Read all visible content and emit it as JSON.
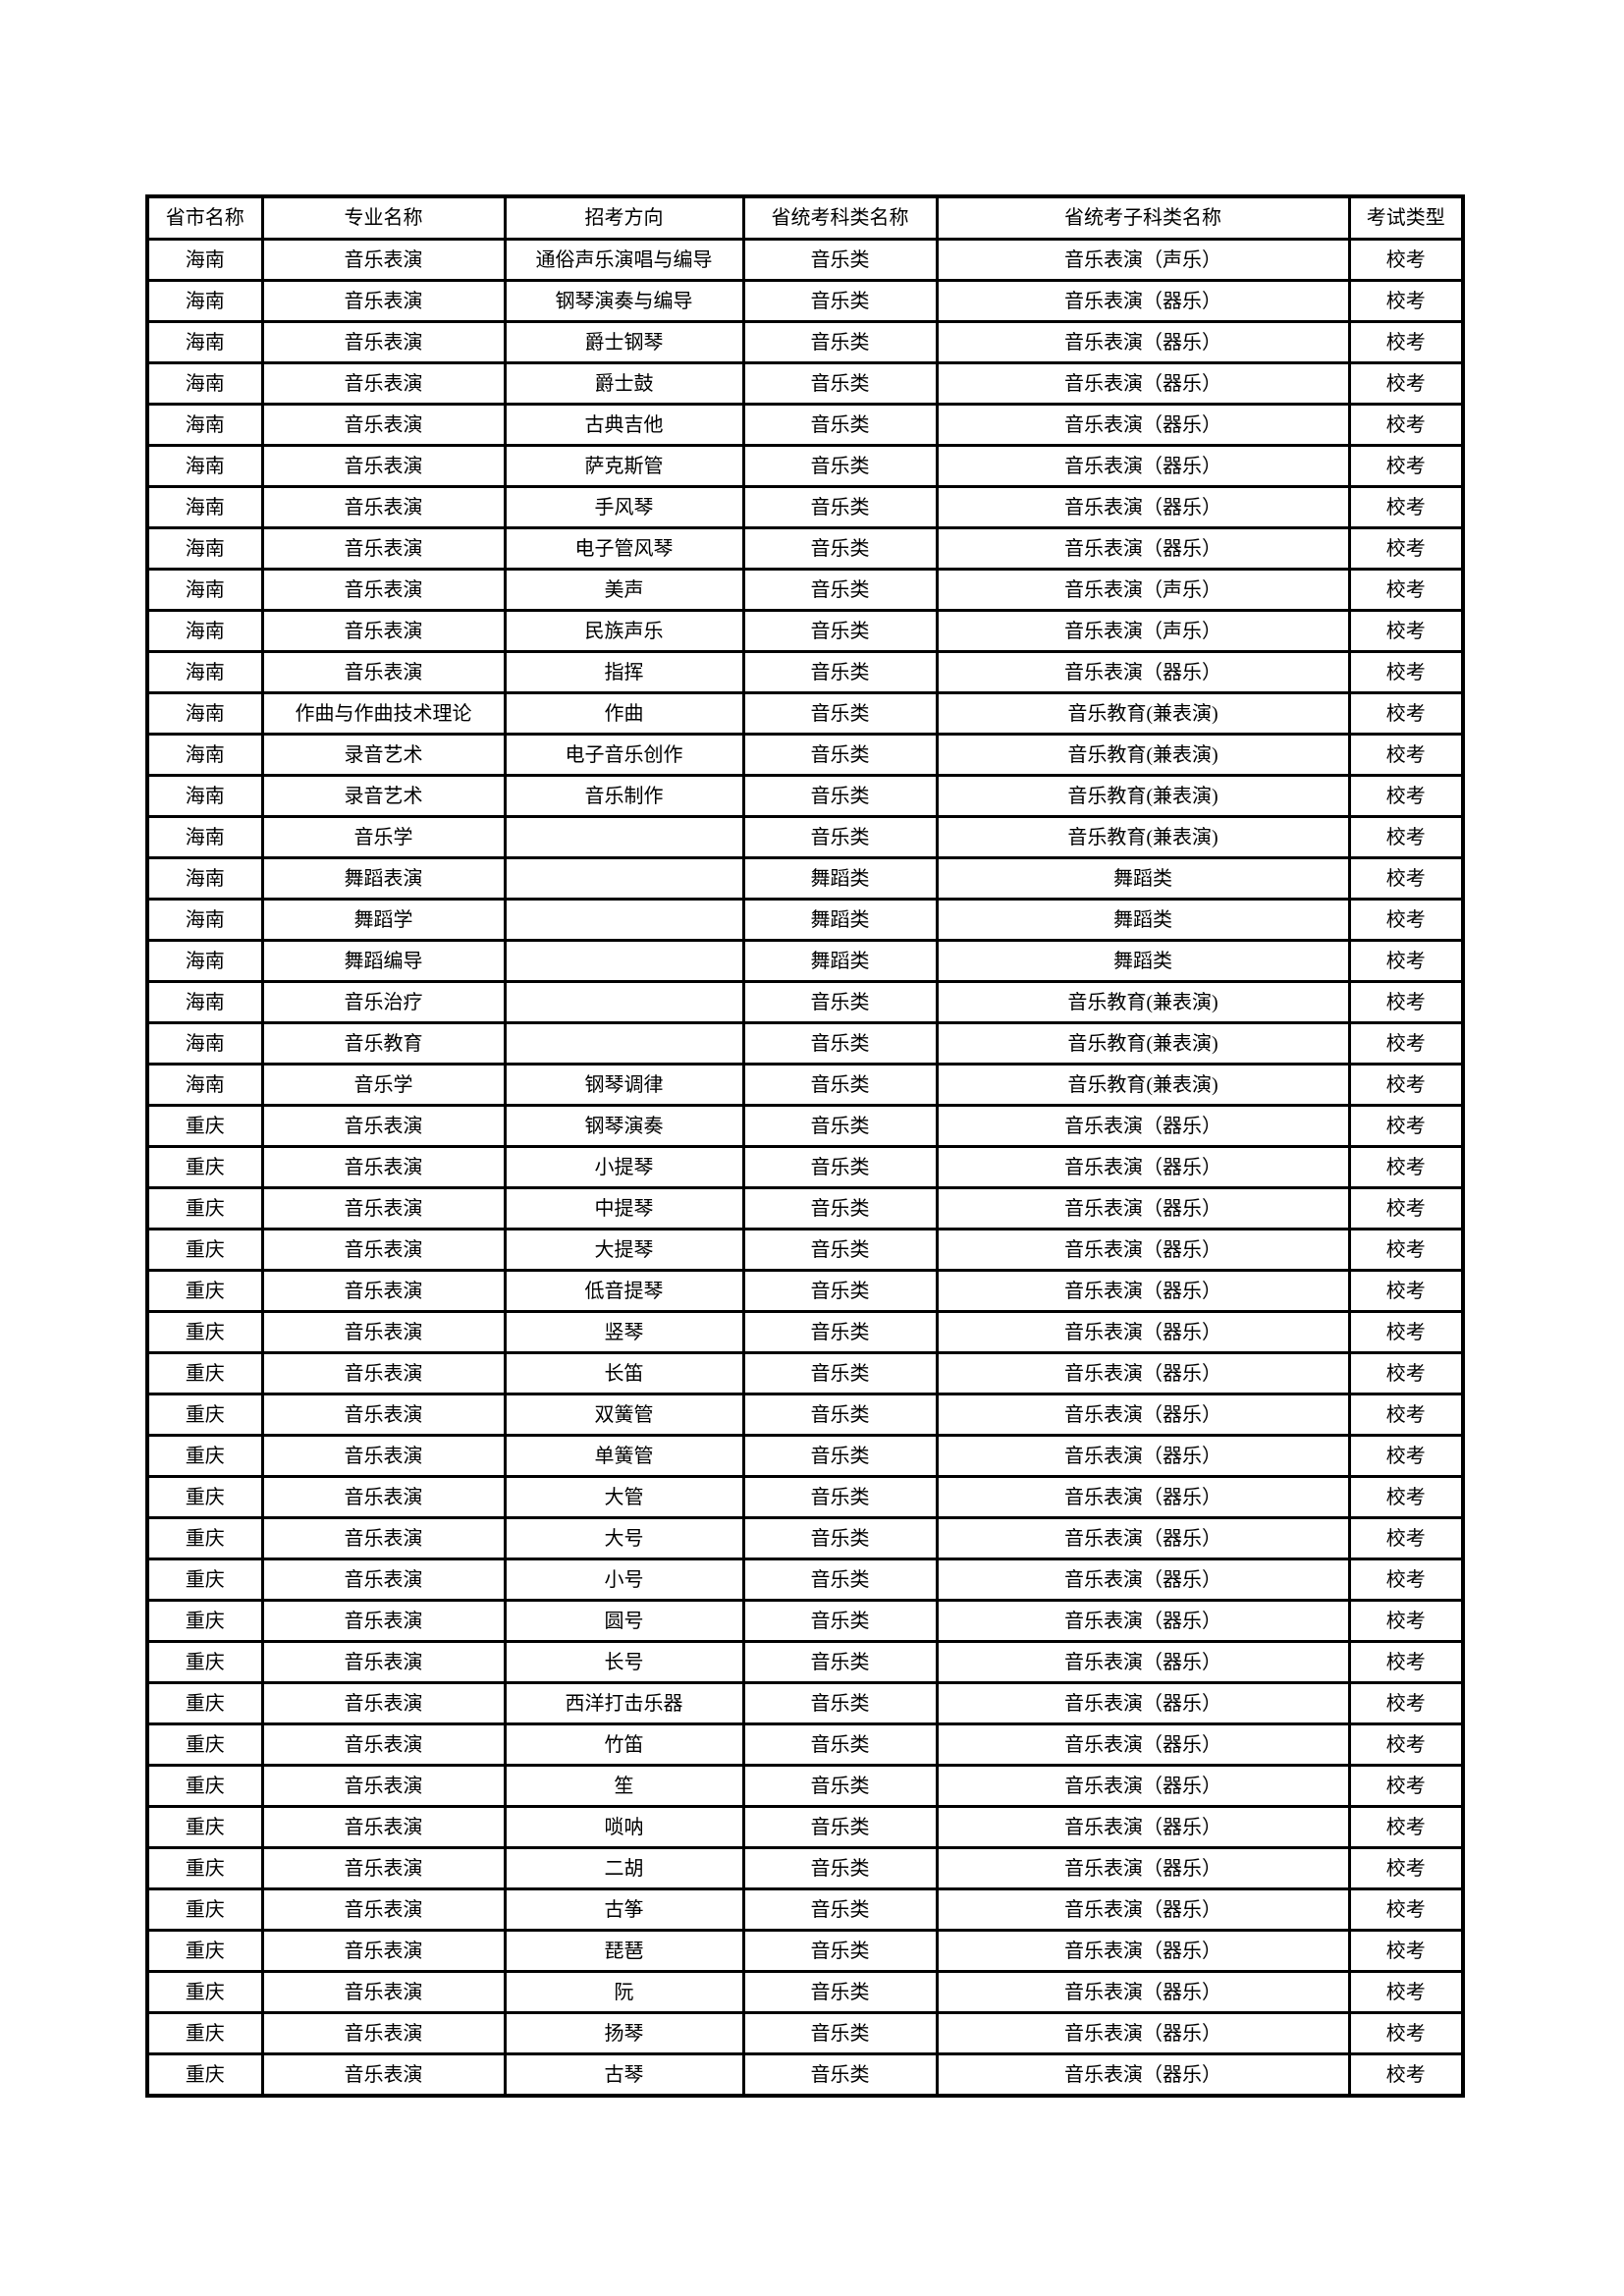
{
  "page": {
    "background": "#ffffff",
    "text_color": "#000000",
    "border_color": "#000000"
  },
  "table": {
    "headers": [
      "省市名称",
      "专业名称",
      "招考方向",
      "省统考科类名称",
      "省统考子科类名称",
      "考试类型"
    ],
    "rows": [
      [
        "海南",
        "音乐表演",
        "通俗声乐演唱与编导",
        "音乐类",
        "音乐表演（声乐）",
        "校考"
      ],
      [
        "海南",
        "音乐表演",
        "钢琴演奏与编导",
        "音乐类",
        "音乐表演（器乐）",
        "校考"
      ],
      [
        "海南",
        "音乐表演",
        "爵士钢琴",
        "音乐类",
        "音乐表演（器乐）",
        "校考"
      ],
      [
        "海南",
        "音乐表演",
        "爵士鼓",
        "音乐类",
        "音乐表演（器乐）",
        "校考"
      ],
      [
        "海南",
        "音乐表演",
        "古典吉他",
        "音乐类",
        "音乐表演（器乐）",
        "校考"
      ],
      [
        "海南",
        "音乐表演",
        "萨克斯管",
        "音乐类",
        "音乐表演（器乐）",
        "校考"
      ],
      [
        "海南",
        "音乐表演",
        "手风琴",
        "音乐类",
        "音乐表演（器乐）",
        "校考"
      ],
      [
        "海南",
        "音乐表演",
        "电子管风琴",
        "音乐类",
        "音乐表演（器乐）",
        "校考"
      ],
      [
        "海南",
        "音乐表演",
        "美声",
        "音乐类",
        "音乐表演（声乐）",
        "校考"
      ],
      [
        "海南",
        "音乐表演",
        "民族声乐",
        "音乐类",
        "音乐表演（声乐）",
        "校考"
      ],
      [
        "海南",
        "音乐表演",
        "指挥",
        "音乐类",
        "音乐表演（器乐）",
        "校考"
      ],
      [
        "海南",
        "作曲与作曲技术理论",
        "作曲",
        "音乐类",
        "音乐教育(兼表演)",
        "校考"
      ],
      [
        "海南",
        "录音艺术",
        "电子音乐创作",
        "音乐类",
        "音乐教育(兼表演)",
        "校考"
      ],
      [
        "海南",
        "录音艺术",
        "音乐制作",
        "音乐类",
        "音乐教育(兼表演)",
        "校考"
      ],
      [
        "海南",
        "音乐学",
        "",
        "音乐类",
        "音乐教育(兼表演)",
        "校考"
      ],
      [
        "海南",
        "舞蹈表演",
        "",
        "舞蹈类",
        "舞蹈类",
        "校考"
      ],
      [
        "海南",
        "舞蹈学",
        "",
        "舞蹈类",
        "舞蹈类",
        "校考"
      ],
      [
        "海南",
        "舞蹈编导",
        "",
        "舞蹈类",
        "舞蹈类",
        "校考"
      ],
      [
        "海南",
        "音乐治疗",
        "",
        "音乐类",
        "音乐教育(兼表演)",
        "校考"
      ],
      [
        "海南",
        "音乐教育",
        "",
        "音乐类",
        "音乐教育(兼表演)",
        "校考"
      ],
      [
        "海南",
        "音乐学",
        "钢琴调律",
        "音乐类",
        "音乐教育(兼表演)",
        "校考"
      ],
      [
        "重庆",
        "音乐表演",
        "钢琴演奏",
        "音乐类",
        "音乐表演（器乐）",
        "校考"
      ],
      [
        "重庆",
        "音乐表演",
        "小提琴",
        "音乐类",
        "音乐表演（器乐）",
        "校考"
      ],
      [
        "重庆",
        "音乐表演",
        "中提琴",
        "音乐类",
        "音乐表演（器乐）",
        "校考"
      ],
      [
        "重庆",
        "音乐表演",
        "大提琴",
        "音乐类",
        "音乐表演（器乐）",
        "校考"
      ],
      [
        "重庆",
        "音乐表演",
        "低音提琴",
        "音乐类",
        "音乐表演（器乐）",
        "校考"
      ],
      [
        "重庆",
        "音乐表演",
        "竖琴",
        "音乐类",
        "音乐表演（器乐）",
        "校考"
      ],
      [
        "重庆",
        "音乐表演",
        "长笛",
        "音乐类",
        "音乐表演（器乐）",
        "校考"
      ],
      [
        "重庆",
        "音乐表演",
        "双簧管",
        "音乐类",
        "音乐表演（器乐）",
        "校考"
      ],
      [
        "重庆",
        "音乐表演",
        "单簧管",
        "音乐类",
        "音乐表演（器乐）",
        "校考"
      ],
      [
        "重庆",
        "音乐表演",
        "大管",
        "音乐类",
        "音乐表演（器乐）",
        "校考"
      ],
      [
        "重庆",
        "音乐表演",
        "大号",
        "音乐类",
        "音乐表演（器乐）",
        "校考"
      ],
      [
        "重庆",
        "音乐表演",
        "小号",
        "音乐类",
        "音乐表演（器乐）",
        "校考"
      ],
      [
        "重庆",
        "音乐表演",
        "圆号",
        "音乐类",
        "音乐表演（器乐）",
        "校考"
      ],
      [
        "重庆",
        "音乐表演",
        "长号",
        "音乐类",
        "音乐表演（器乐）",
        "校考"
      ],
      [
        "重庆",
        "音乐表演",
        "西洋打击乐器",
        "音乐类",
        "音乐表演（器乐）",
        "校考"
      ],
      [
        "重庆",
        "音乐表演",
        "竹笛",
        "音乐类",
        "音乐表演（器乐）",
        "校考"
      ],
      [
        "重庆",
        "音乐表演",
        "笙",
        "音乐类",
        "音乐表演（器乐）",
        "校考"
      ],
      [
        "重庆",
        "音乐表演",
        "唢呐",
        "音乐类",
        "音乐表演（器乐）",
        "校考"
      ],
      [
        "重庆",
        "音乐表演",
        "二胡",
        "音乐类",
        "音乐表演（器乐）",
        "校考"
      ],
      [
        "重庆",
        "音乐表演",
        "古筝",
        "音乐类",
        "音乐表演（器乐）",
        "校考"
      ],
      [
        "重庆",
        "音乐表演",
        "琵琶",
        "音乐类",
        "音乐表演（器乐）",
        "校考"
      ],
      [
        "重庆",
        "音乐表演",
        "阮",
        "音乐类",
        "音乐表演（器乐）",
        "校考"
      ],
      [
        "重庆",
        "音乐表演",
        "扬琴",
        "音乐类",
        "音乐表演（器乐）",
        "校考"
      ],
      [
        "重庆",
        "音乐表演",
        "古琴",
        "音乐类",
        "音乐表演（器乐）",
        "校考"
      ]
    ]
  }
}
